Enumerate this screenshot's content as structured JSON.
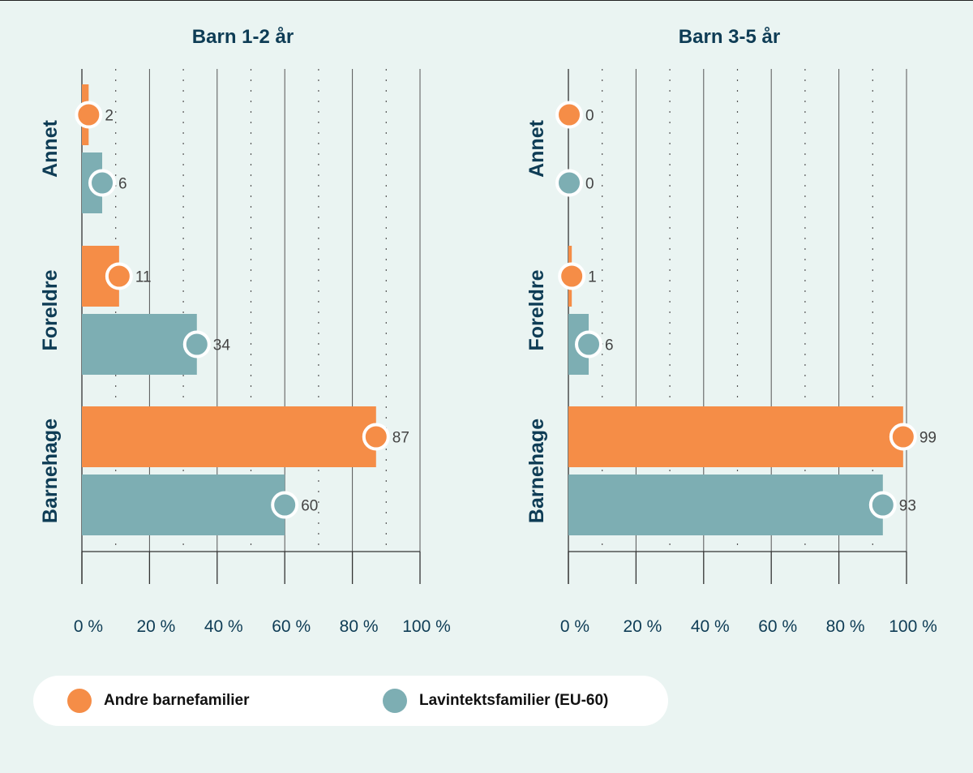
{
  "colors": {
    "andre": "#f58d47",
    "lavinntekt": "#7daeb3",
    "title": "#0e3c55",
    "tick": "#0e3c55",
    "value": "#444444",
    "grid": "#555555"
  },
  "legend": {
    "items": [
      {
        "label": "Andre barnefamilier",
        "color": "#f58d47"
      },
      {
        "label": "Lavintektsfamilier (EU-60)",
        "color": "#7daeb3"
      }
    ]
  },
  "chart_data": [
    {
      "type": "bar",
      "orientation": "horizontal",
      "title": "Barn 1-2 år",
      "categories": [
        "Annet",
        "Foreldre",
        "Barnehage"
      ],
      "series": [
        {
          "name": "Andre barnefamilier",
          "values": [
            2,
            11,
            87
          ]
        },
        {
          "name": "Lavintektsfamilier (EU-60)",
          "values": [
            6,
            34,
            60
          ]
        }
      ],
      "xlim": [
        0,
        100
      ],
      "xticks": [
        "0 %",
        "20 %",
        "40 %",
        "60 %",
        "80 %",
        "100 %"
      ],
      "grid": true,
      "legend": "bottom"
    },
    {
      "type": "bar",
      "orientation": "horizontal",
      "title": "Barn 3-5 år",
      "categories": [
        "Annet",
        "Foreldre",
        "Barnehage"
      ],
      "series": [
        {
          "name": "Andre barnefamilier",
          "values": [
            0,
            1,
            99
          ]
        },
        {
          "name": "Lavintektsfamilier (EU-60)",
          "values": [
            0,
            6,
            93
          ]
        }
      ],
      "xlim": [
        0,
        100
      ],
      "xticks": [
        "0 %",
        "20 %",
        "40 %",
        "60 %",
        "80 %",
        "100 %"
      ],
      "grid": true,
      "legend": "bottom"
    }
  ]
}
